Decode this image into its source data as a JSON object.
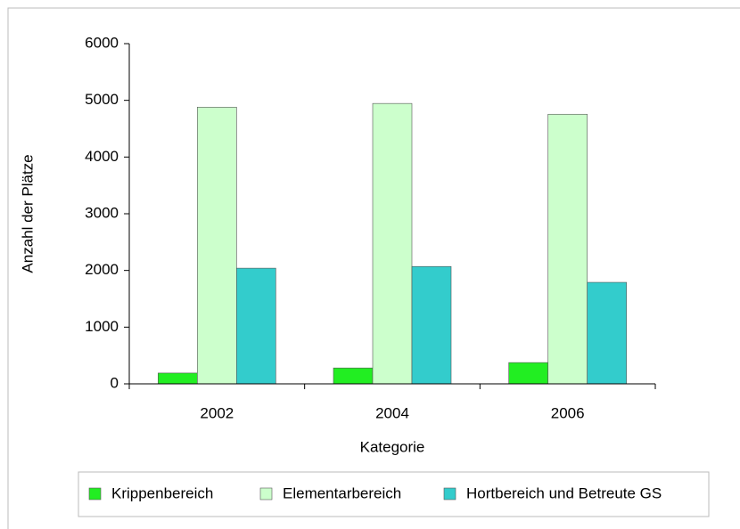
{
  "chart_data": {
    "type": "bar",
    "categories": [
      "2002",
      "2004",
      "2006"
    ],
    "series": [
      {
        "name": "Krippenbereich",
        "color": "#22ee22",
        "values": [
          190,
          280,
          375
        ]
      },
      {
        "name": "Elementarbereich",
        "color": "#ccffcc",
        "values": [
          4880,
          4945,
          4755
        ]
      },
      {
        "name": "Hortbereich und Betreute GS",
        "color": "#33cccc",
        "values": [
          2040,
          2070,
          1790
        ]
      }
    ],
    "ylim": [
      0,
      6000
    ],
    "yticks": [
      0,
      1000,
      2000,
      3000,
      4000,
      5000,
      6000
    ],
    "x_label": "Kategorie",
    "y_label": "Anzahl der Plätze",
    "grid": false,
    "legend": "bottom"
  }
}
